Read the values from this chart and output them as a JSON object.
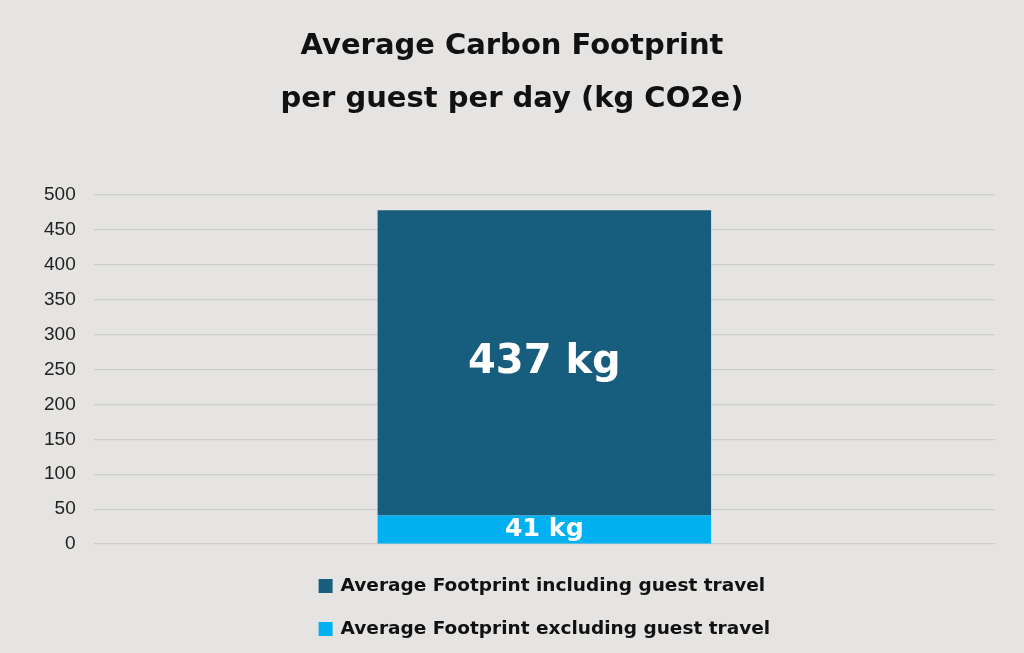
{
  "chart_data": {
    "type": "bar",
    "title": "Average Carbon Footprint per guest per day (kg CO2e)",
    "categories": [
      null
    ],
    "stacked": true,
    "series": [
      {
        "name": "Average Footprint excluding guest travel",
        "color": "#00b0f0",
        "values": [
          41
        ],
        "value_labels": [
          "41 kg"
        ]
      },
      {
        "name": "Average Footprint including guest travel",
        "color": "#175e7e",
        "values": [
          437
        ],
        "value_labels": [
          "437 kg"
        ]
      }
    ],
    "ylim": [
      0,
      500
    ],
    "yticks": [
      0,
      50,
      100,
      150,
      200,
      250,
      300,
      350,
      400,
      450,
      500
    ],
    "grid": "y",
    "legend": "bottom"
  }
}
